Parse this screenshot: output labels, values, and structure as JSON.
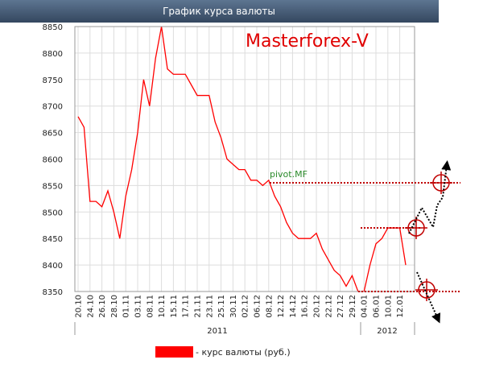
{
  "header": {
    "title": "График курса валюты"
  },
  "chart_data": {
    "type": "line",
    "annotations": {
      "brand": "Masterforex-V",
      "pivot": "pivot.MF"
    },
    "categories": [
      "20.10",
      null,
      "24.10",
      null,
      "26.10",
      null,
      "28.10",
      null,
      "01.11",
      null,
      "03.11",
      null,
      "08.11",
      null,
      "10.11",
      null,
      "15.11",
      null,
      "17.11",
      null,
      "21.11",
      null,
      "23.11",
      null,
      "25.11",
      null,
      "30.11",
      null,
      "02.12",
      null,
      "06.12",
      null,
      "08.12",
      null,
      "12.12",
      null,
      "14.12",
      null,
      "16.12",
      null,
      "20.12",
      null,
      "22.12",
      null,
      "27.12",
      null,
      "29.12",
      null,
      "04.01",
      null,
      "06.01",
      null,
      "10.01",
      null,
      "12.01",
      null
    ],
    "x_groups": [
      "2011",
      "2012"
    ],
    "series": [
      {
        "name": "- курс валюты (руб.)",
        "color": "#ff0000",
        "values": [
          8680,
          8660,
          8520,
          8520,
          8510,
          8540,
          8500,
          8450,
          8530,
          8580,
          8650,
          8750,
          8700,
          8790,
          8850,
          8770,
          8760,
          8760,
          8760,
          8740,
          8720,
          8720,
          8720,
          8670,
          8640,
          8600,
          8590,
          8580,
          8580,
          8560,
          8560,
          8550,
          8560,
          8530,
          8510,
          8480,
          8460,
          8450,
          8450,
          8450,
          8460,
          8430,
          8410,
          8390,
          8380,
          8360,
          8380,
          8350,
          8350,
          8400,
          8440,
          8450,
          8470,
          8470,
          8470,
          8400
        ]
      }
    ],
    "ylim": [
      8350,
      8850
    ],
    "yticks": [
      8350,
      8400,
      8450,
      8500,
      8550,
      8600,
      8650,
      8700,
      8750,
      8800,
      8850
    ],
    "grid": true
  }
}
